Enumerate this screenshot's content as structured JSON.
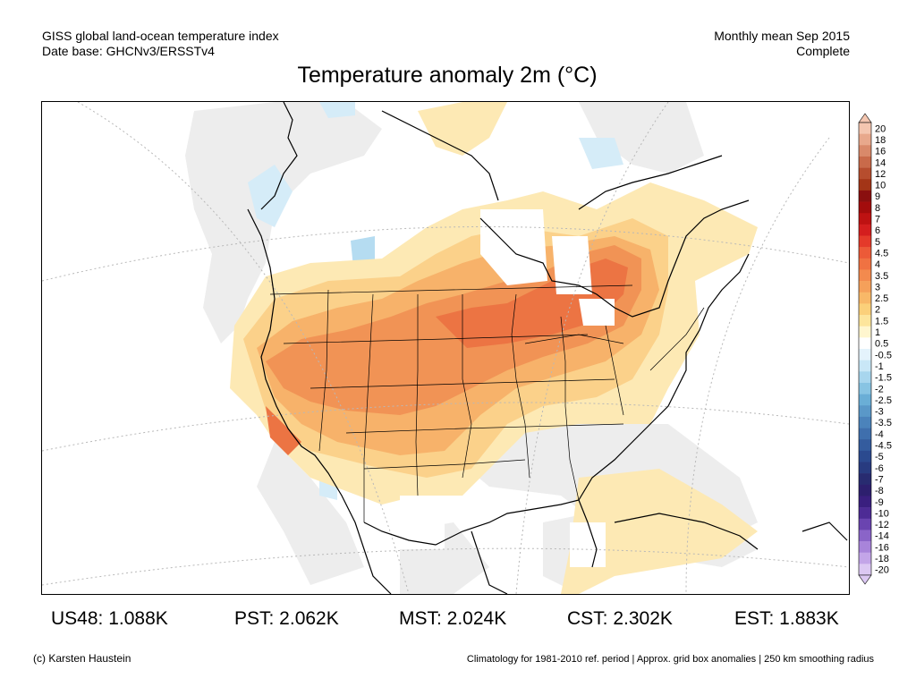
{
  "header": {
    "line1_left": "GISS global land-ocean temperature index",
    "line2_left": "Date base: GHCNv3/ERSSTv4",
    "line1_right": "Monthly mean Sep 2015",
    "line2_right": "Complete"
  },
  "title": "Temperature anomaly 2m (°C)",
  "legend": {
    "ticks": [
      "20",
      "18",
      "16",
      "14",
      "12",
      "10",
      "9",
      "8",
      "7",
      "6",
      "5",
      "4.5",
      "4",
      "3.5",
      "3",
      "2.5",
      "2",
      "1.5",
      "1",
      "0.5",
      "-0.5",
      "-1",
      "-1.5",
      "-2",
      "-2.5",
      "-3",
      "-3.5",
      "-4",
      "-4.5",
      "-5",
      "-6",
      "-7",
      "-8",
      "-9",
      "-10",
      "-12",
      "-14",
      "-16",
      "-18",
      "-20"
    ],
    "colors": [
      "#f4c6b0",
      "#e8a88c",
      "#d9896a",
      "#c96a4a",
      "#b64d2e",
      "#a33517",
      "#8a0f0f",
      "#a30c0c",
      "#be1212",
      "#d41e1e",
      "#e43a2a",
      "#ec5a38",
      "#f07242",
      "#f38a4e",
      "#f5a05a",
      "#f8b868",
      "#fbd07a",
      "#fde59c",
      "#fff6cf",
      "#ffffff",
      "#e4f3fc",
      "#c9e7f7",
      "#a8d6ee",
      "#88c4e3",
      "#6aaed6",
      "#5a98c8",
      "#4b83bb",
      "#3f6fad",
      "#345c9e",
      "#2b4a8f",
      "#283b80",
      "#282b70",
      "#2d1f6e",
      "#3a1f7f",
      "#4d2b95",
      "#6a44b0",
      "#8a64c8",
      "#a884da",
      "#c3a5e8",
      "#dcc8f3"
    ]
  },
  "stats": [
    {
      "label": "US48: 1.088K"
    },
    {
      "label": "PST: 2.062K"
    },
    {
      "label": "MST: 2.024K"
    },
    {
      "label": "CST: 2.302K"
    },
    {
      "label": "EST: 1.883K"
    }
  ],
  "footer": {
    "left": "(c) Karsten Haustein",
    "right": "Climatology for 1981-2010 ref. period | Approx. grid box anomalies | 250 km smoothing radius"
  },
  "colors": {
    "warm_1": "#fde9b4",
    "warm_2": "#fbd18a",
    "warm_3": "#f7b26a",
    "warm_4": "#f19355",
    "warm_5": "#ec7443",
    "cool_1": "#d5ecf8",
    "cool_2": "#b5dcf1",
    "neutral": "#eeeeee",
    "nodata": "#ffffff"
  }
}
